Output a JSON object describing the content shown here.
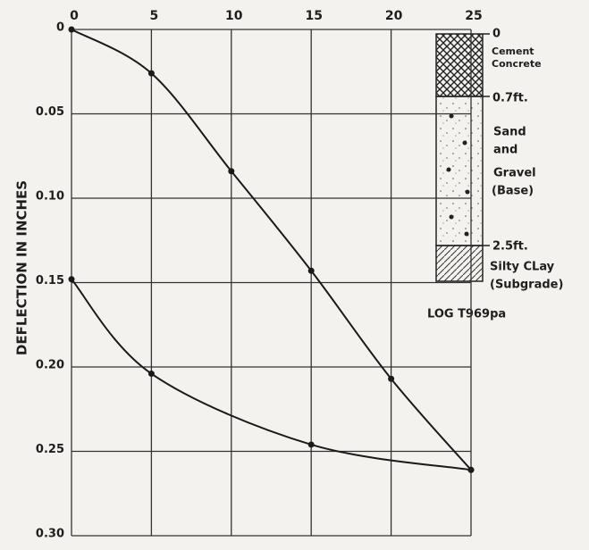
{
  "chart_data": {
    "type": "line",
    "y_label": "DEFLECTION IN INCHES",
    "xlim": [
      0,
      25
    ],
    "xticks": [
      0,
      5,
      10,
      15,
      20,
      25
    ],
    "ylim": [
      0,
      0.3
    ],
    "yticks": [
      0,
      0.05,
      {
        "value": 0.1,
        "label": "0.10"
      },
      0.15,
      {
        "value": 0.2,
        "label": "0.20"
      },
      0.25,
      {
        "value": 0.3,
        "label": "0.30"
      }
    ],
    "y_inverted": true,
    "x_axis_top": true,
    "grid": true,
    "series": [
      {
        "color": "#1a1a1a",
        "x": [
          0,
          5,
          10,
          15,
          20,
          25
        ],
        "values": [
          0,
          0.026,
          0.084,
          0.143,
          0.207,
          0.261
        ]
      },
      {
        "color": "#1a1a1a",
        "x": [
          0,
          5,
          15,
          25
        ],
        "values": [
          0.148,
          0.204,
          0.246,
          0.261
        ]
      }
    ],
    "soil_profile": {
      "depth_labels": [
        "0",
        "0.7ft.",
        "2.5ft."
      ],
      "layers": [
        [
          "Cement",
          "Concrete"
        ],
        [
          "Sand",
          "and",
          "Gravel",
          "(Base)"
        ],
        [
          "Silty CLay",
          "(Subgrade)"
        ]
      ]
    },
    "note": "LOG T969pa"
  }
}
